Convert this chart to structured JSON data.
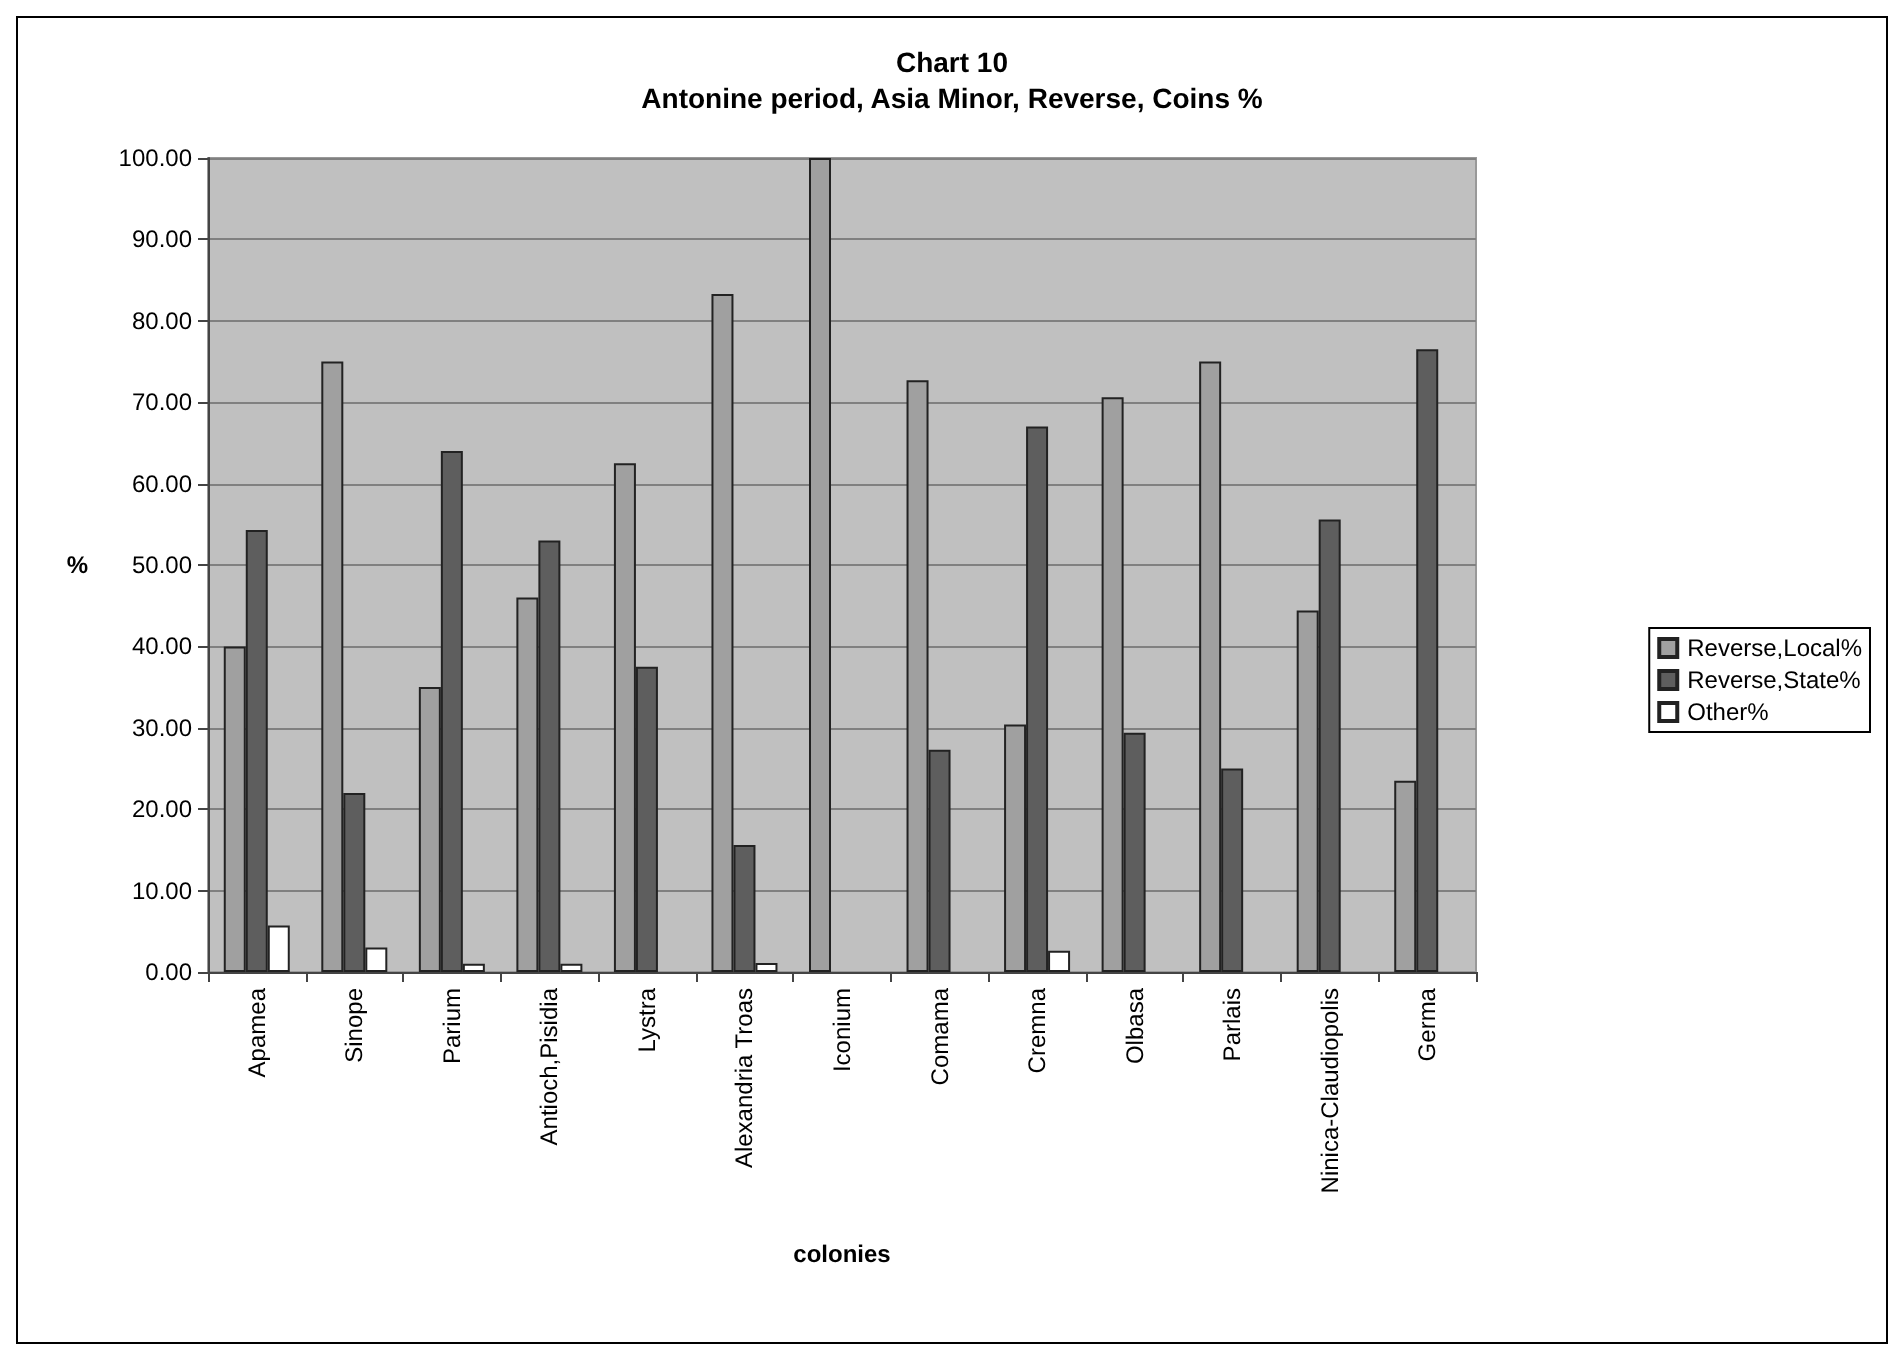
{
  "chart_data": {
    "type": "bar",
    "title": "Chart 10\nAntonine period, Asia Minor, Reverse, Coins %",
    "xlabel": "colonies",
    "ylabel": "%",
    "categories": [
      "Apamea",
      "Sinope",
      "Parium",
      "Antioch,Pisidia",
      "Lystra",
      "Alexandria Troas",
      "Iconium",
      "Comama",
      "Cremna",
      "Olbasa",
      "Parlais",
      "Ninica-Claudiopolis",
      "Germa"
    ],
    "series": [
      {
        "name": "Reverse,Local%",
        "color": "#a0a0a0",
        "values": [
          40,
          75,
          35,
          46,
          62.5,
          83.3,
          100,
          72.7,
          30.4,
          70.6,
          75,
          44.4,
          23.5
        ]
      },
      {
        "name": "Reverse,State%",
        "color": "#5e5e5e",
        "values": [
          54.3,
          22,
          64,
          53,
          37.5,
          15.6,
          0,
          27.3,
          67,
          29.4,
          25,
          55.6,
          76.5
        ]
      },
      {
        "name": "Other%",
        "color": "#ffffff",
        "values": [
          5.7,
          3,
          1,
          1,
          0,
          1.1,
          0,
          0,
          2.6,
          0,
          0,
          0,
          0
        ]
      }
    ],
    "ylim": [
      0,
      100
    ],
    "yticks": [
      {
        "value": 0,
        "label": "0.00"
      },
      {
        "value": 10,
        "label": "10.00"
      },
      {
        "value": 20,
        "label": "20.00"
      },
      {
        "value": 30,
        "label": "30.00"
      },
      {
        "value": 40,
        "label": "40.00"
      },
      {
        "value": 50,
        "label": "50.00"
      },
      {
        "value": 60,
        "label": "60.00"
      },
      {
        "value": 70,
        "label": "70.00"
      },
      {
        "value": 80,
        "label": "80.00"
      },
      {
        "value": 90,
        "label": "90.00"
      },
      {
        "value": 100,
        "label": "100.00"
      }
    ],
    "grid": "y",
    "legend": "right"
  }
}
